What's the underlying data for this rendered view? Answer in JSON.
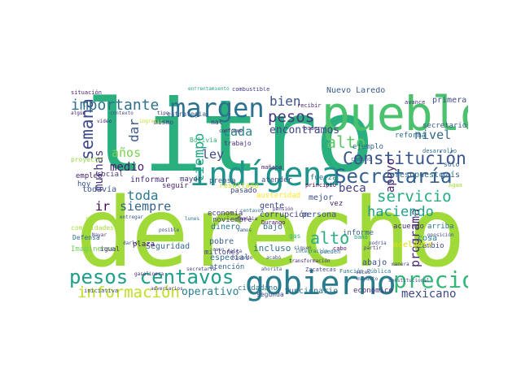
{
  "words": [
    {
      "text": "derecho",
      "color": "#a0da39"
    },
    {
      "text": "litro",
      "color": "#2ab07f"
    },
    {
      "text": "pueblo",
      "color": "#4ac16d"
    },
    {
      "text": "indígena",
      "color": "#1f948c"
    },
    {
      "text": "gobierno",
      "color": "#287c8e"
    },
    {
      "text": "margen",
      "color": "#2c728e"
    },
    {
      "text": "pesos centavos",
      "color": "#1f9e89"
    },
    {
      "text": "precio",
      "color": "#35b779"
    },
    {
      "text": "Secretaría",
      "color": "#355f8d"
    },
    {
      "text": "Constitución",
      "color": "#39558c"
    },
    {
      "text": "información",
      "color": "#bddf26"
    },
    {
      "text": "semana",
      "color": "#3e4989"
    },
    {
      "text": "importante",
      "color": "#2d708e"
    },
    {
      "text": "servicio",
      "color": "#25ab82"
    },
    {
      "text": "haciendo",
      "color": "#1fa188"
    },
    {
      "text": "pesos",
      "color": "#443983"
    },
    {
      "text": "apoyo",
      "color": "#3b528b"
    },
    {
      "text": "bien",
      "color": "#5ec962"
    },
    {
      "text": "alto",
      "color": "#29af7f"
    },
    {
      "text": "mexicano",
      "color": "#3e4a89"
    },
    {
      "text": "programa",
      "color": "#482475"
    },
    {
      "text": "tiempo",
      "color": "#22a884"
    },
    {
      "text": "cada",
      "color": "#26828e"
    },
    {
      "text": "toda",
      "color": "#2a778e"
    },
    {
      "text": "siempre",
      "color": "#33638d"
    },
    {
      "text": "muchas",
      "color": "#414487"
    },
    {
      "text": "encontramos",
      "color": "#424086"
    },
    {
      "text": "beca",
      "color": "#7ad151"
    },
    {
      "text": "años",
      "color": "#31688e"
    },
    {
      "text": "nivel",
      "color": "#46327e"
    },
    {
      "text": "operativo",
      "color": "#277f8e"
    },
    {
      "text": "ley",
      "color": "#404688"
    },
    {
      "text": "dar",
      "color": "#38588c"
    },
    {
      "text": "ir",
      "color": "#440154"
    },
    {
      "text": "medio",
      "color": "#481a6c"
    },
    {
      "text": "alto",
      "color": "#29af7f"
    },
    {
      "text": "Seguridad",
      "color": "#31688e"
    },
    {
      "text": "incluso",
      "color": "#2c728e"
    },
    {
      "text": "funcionario",
      "color": "#2d708e"
    },
    {
      "text": "económico",
      "color": "#472d7b"
    },
    {
      "text": "todavía",
      "color": "#3b528b"
    },
    {
      "text": "informar",
      "color": "#472c7a"
    },
    {
      "text": "cosa",
      "color": "#26828e"
    },
    {
      "text": "cambio",
      "color": "#3e4989"
    },
    {
      "text": "persona",
      "color": "#3a538b"
    },
    {
      "text": "corrupción",
      "color": "#404387"
    },
    {
      "text": "dinero",
      "color": "#2a768e"
    },
    {
      "text": "pobre",
      "color": "#355e8d"
    },
    {
      "text": "especial",
      "color": "#2e6e8e"
    },
    {
      "text": "atención",
      "color": "#31668e"
    },
    {
      "text": "millones",
      "color": "#433e85"
    },
    {
      "text": "ciudadano",
      "color": "#2c738e"
    },
    {
      "text": "presupuesto",
      "color": "#2f6b8e"
    },
    {
      "text": "reforma",
      "color": "#2e6f8e"
    },
    {
      "text": "Nuevo Laredo",
      "color": "#38598c"
    },
    {
      "text": "primera",
      "color": "#3d4d8a"
    },
    {
      "text": "secretario",
      "color": "#39568c"
    },
    {
      "text": "país",
      "color": "#355f8d"
    },
    {
      "text": "austeridad",
      "color": "#fde725"
    },
    {
      "text": "resultado",
      "color": "#c2df23"
    },
    {
      "text": "gente",
      "color": "#3f4889"
    },
    {
      "text": "bajo",
      "color": "#2f6c8e"
    },
    {
      "text": "mejor",
      "color": "#3b518b"
    },
    {
      "text": "vez",
      "color": "#482777"
    },
    {
      "text": "informe",
      "color": "#34618d"
    },
    {
      "text": "adelante",
      "color": "#d8e219"
    },
    {
      "text": "abajo",
      "color": "#3e4a89"
    },
    {
      "text": "acuerdo",
      "color": "#46307e"
    },
    {
      "text": "arriba",
      "color": "#2a788e"
    },
    {
      "text": "Imaginense",
      "color": "#6ece58"
    },
    {
      "text": "mayor",
      "color": "#453581"
    },
    {
      "text": "seguir",
      "color": "#481d6f"
    },
    {
      "text": "atender",
      "color": "#3b528b"
    },
    {
      "text": "prensa",
      "color": "#39568c"
    },
    {
      "text": "pasado",
      "color": "#404588"
    },
    {
      "text": "estrategia",
      "color": "#38598c"
    },
    {
      "text": "mismo",
      "color": "#453781"
    },
    {
      "text": "trabajo",
      "color": "#472d7b"
    },
    {
      "text": "Bolivia",
      "color": "#35b779"
    },
    {
      "text": "empleo",
      "color": "#482071"
    },
    {
      "text": "hoy",
      "color": "#3b528b"
    },
    {
      "text": "social",
      "color": "#443b84"
    },
    {
      "text": "plaza",
      "color": "#48186a"
    },
    {
      "text": "igual",
      "color": "#482979"
    },
    {
      "text": "segunda",
      "color": "#3e4c8a"
    },
    {
      "text": "economía",
      "color": "#46337f"
    },
    {
      "text": "noviembre",
      "color": "#423f85"
    },
    {
      "text": "fuerza",
      "color": "#2a788e"
    },
    {
      "text": "ejemplo",
      "color": "#31688e"
    },
    {
      "text": "mal",
      "color": "#46327e"
    },
    {
      "text": "proyecto",
      "color": "#90d743"
    },
    {
      "text": "comunidades",
      "color": "#a8db34"
    },
    {
      "text": "Defensa",
      "color": "#2e6e8e"
    },
    {
      "text": "Durango",
      "color": "#471164"
    },
    {
      "text": "Zacatecas",
      "color": "#3f4788"
    },
    {
      "text": "Función Pública",
      "color": "#2a788e"
    },
    {
      "text": "mañana",
      "color": "#481d6f"
    },
    {
      "text": "principio",
      "color": "#440154"
    },
    {
      "text": "camino",
      "color": "#38598c"
    },
    {
      "text": "sólo",
      "color": "#34618d"
    },
    {
      "text": "desarrollo",
      "color": "#2e6e8e"
    },
    {
      "text": "avance",
      "color": "#46307e"
    },
    {
      "text": "situación",
      "color": "#48186a"
    },
    {
      "text": "combustible",
      "color": "#453781"
    },
    {
      "text": "enfrentamiento",
      "color": "#20a386"
    },
    {
      "text": "recibir",
      "color": "#482071"
    },
    {
      "text": "poder",
      "color": "#443983"
    },
    {
      "text": "mandato",
      "color": "#355f8d"
    },
    {
      "text": "iniciativa",
      "color": "#3e4989"
    },
    {
      "text": "adversarios",
      "color": "#453882"
    },
    {
      "text": "secretaria",
      "color": "#404588"
    },
    {
      "text": "ahorita",
      "color": "#39568c"
    },
    {
      "text": "acabó",
      "color": "#3e4a89"
    },
    {
      "text": "transformación",
      "color": "#482576"
    },
    {
      "text": "podría",
      "color": "#3a548c"
    },
    {
      "text": "Nayar",
      "color": "#453882"
    },
    {
      "text": "darle",
      "color": "#3b528b"
    },
    {
      "text": "pueden",
      "color": "#2c728e"
    },
    {
      "text": "familia",
      "color": "#481f70"
    },
    {
      "text": "lunes",
      "color": "#2c718e"
    },
    {
      "text": "pensión",
      "color": "#46327e"
    },
    {
      "text": "gas",
      "color": "#35b779"
    },
    {
      "text": "cabo",
      "color": "#470e61"
    },
    {
      "text": "baño",
      "color": "#1fa088"
    },
    {
      "text": "partir",
      "color": "#443983"
    },
    {
      "text": "Agua",
      "color": "#9fda3a"
    },
    {
      "text": "manera",
      "color": "#433e85"
    },
    {
      "text": "oposición",
      "color": "#404588"
    },
    {
      "text": "siguen",
      "color": "#3f4788"
    },
    {
      "text": "integración",
      "color": "#2a778e"
    },
    {
      "text": "respuesta",
      "color": "#a2da37"
    },
    {
      "text": "tipo",
      "color": "#482878"
    },
    {
      "text": "video",
      "color": "#482475"
    },
    {
      "text": "ingresar",
      "color": "#bade28"
    },
    {
      "text": "contexto",
      "color": "#3f4889"
    },
    {
      "text": "algún",
      "color": "#481a6c"
    },
    {
      "text": "Ricardo",
      "color": "#46307e"
    },
    {
      "text": "conforme",
      "color": "#482475"
    },
    {
      "text": "centavos",
      "color": "#2c728e"
    },
    {
      "text": "posible",
      "color": "#3b528b"
    },
    {
      "text": "vamos",
      "color": "#375a8c"
    },
    {
      "text": "caso",
      "color": "#3a548c"
    },
    {
      "text": "falta",
      "color": "#3e4c8a"
    },
    {
      "text": "entregar",
      "color": "#38598c"
    },
    {
      "text": "constitucional",
      "color": "#3e4989"
    },
    {
      "text": "veces",
      "color": "#453781"
    },
    {
      "text": "gasolinera",
      "color": "#482878"
    }
  ]
}
